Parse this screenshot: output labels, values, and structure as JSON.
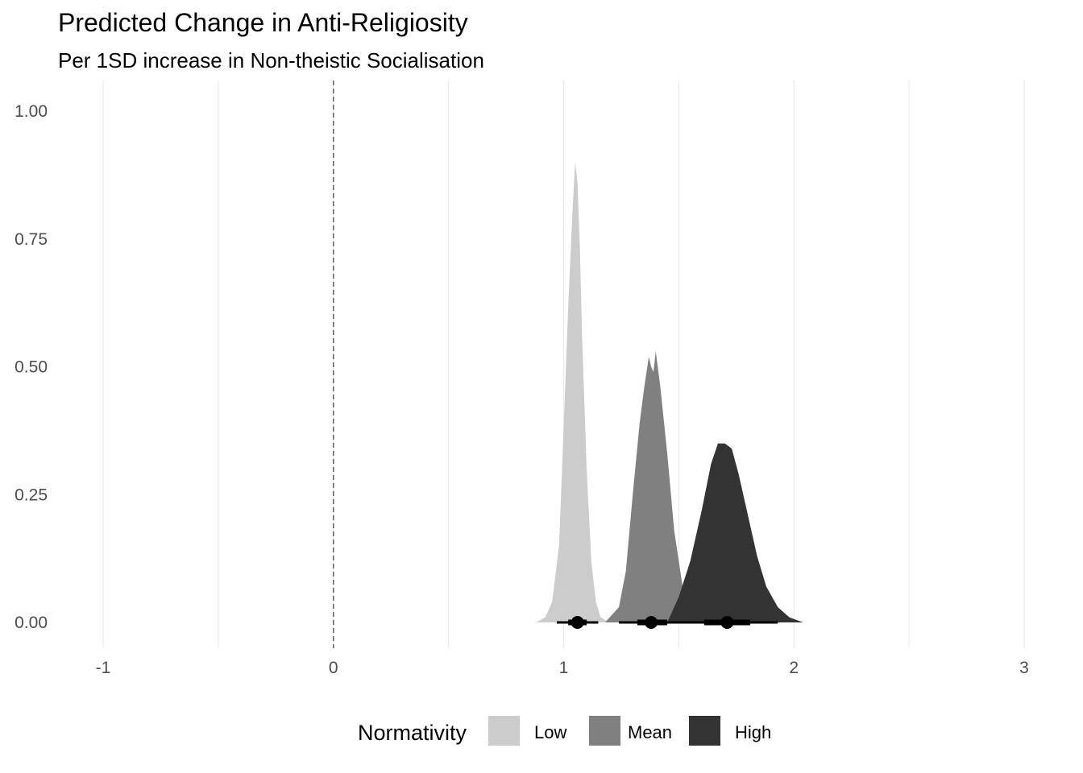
{
  "chart_data": {
    "type": "area",
    "title": "Predicted Change in Anti-Religiosity",
    "subtitle": "Per 1SD increase in Non-theistic Socialisation",
    "xlabel": "",
    "ylabel": "",
    "xlim": [
      -1.2,
      3.1
    ],
    "ylim": [
      0,
      1.05
    ],
    "x_ticks": [
      "-1",
      "0",
      "1",
      "2",
      "3"
    ],
    "y_ticks": [
      "0.00",
      "0.25",
      "0.50",
      "0.75",
      "1.00"
    ],
    "reference_line": {
      "x": 0,
      "style": "dashed"
    },
    "grid": "vertical",
    "legend": {
      "title": "Normativity",
      "position": "bottom"
    },
    "series": [
      {
        "name": "Low",
        "color": "#cccccc",
        "density_x": [
          0.88,
          0.92,
          0.95,
          0.98,
          1.0,
          1.02,
          1.04,
          1.05,
          1.06,
          1.07,
          1.08,
          1.1,
          1.12,
          1.14,
          1.16,
          1.2
        ],
        "density_y": [
          0.0,
          0.01,
          0.04,
          0.15,
          0.38,
          0.62,
          0.82,
          0.9,
          0.86,
          0.74,
          0.56,
          0.3,
          0.12,
          0.04,
          0.01,
          0.0
        ],
        "point": 1.06,
        "interval_inner": [
          1.02,
          1.1
        ],
        "interval_outer": [
          0.97,
          1.15
        ]
      },
      {
        "name": "Mean",
        "color": "#808080",
        "density_x": [
          1.18,
          1.24,
          1.27,
          1.3,
          1.33,
          1.35,
          1.37,
          1.38,
          1.39,
          1.4,
          1.42,
          1.45,
          1.48,
          1.52,
          1.55,
          1.6
        ],
        "density_y": [
          0.0,
          0.03,
          0.1,
          0.25,
          0.39,
          0.46,
          0.52,
          0.5,
          0.49,
          0.53,
          0.46,
          0.33,
          0.18,
          0.06,
          0.02,
          0.0
        ],
        "point": 1.38,
        "interval_inner": [
          1.32,
          1.45
        ],
        "interval_outer": [
          1.24,
          1.55
        ]
      },
      {
        "name": "High",
        "color": "#333333",
        "density_x": [
          1.45,
          1.5,
          1.55,
          1.6,
          1.64,
          1.67,
          1.7,
          1.73,
          1.76,
          1.8,
          1.84,
          1.88,
          1.93,
          1.98,
          2.04,
          2.1
        ],
        "density_y": [
          0.0,
          0.05,
          0.12,
          0.22,
          0.31,
          0.35,
          0.35,
          0.34,
          0.29,
          0.21,
          0.13,
          0.07,
          0.03,
          0.01,
          0.0,
          0.0
        ],
        "point": 1.71,
        "interval_inner": [
          1.61,
          1.81
        ],
        "interval_outer": [
          1.5,
          1.93
        ]
      }
    ]
  }
}
